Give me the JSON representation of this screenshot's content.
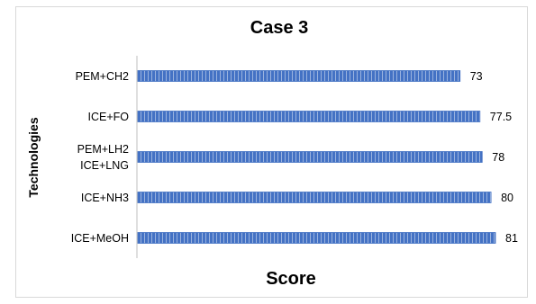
{
  "chart_data": {
    "type": "bar",
    "orientation": "horizontal",
    "title": "Case 3",
    "xlabel": "Score",
    "ylabel": "Technologies",
    "categories": [
      [
        "PEM+CH2"
      ],
      [
        "ICE+FO"
      ],
      [
        "PEM+LH2",
        "ICE+LNG"
      ],
      [
        "ICE+NH3"
      ],
      [
        "ICE+MeOH"
      ]
    ],
    "values": [
      73,
      77.5,
      78,
      80,
      81
    ],
    "data_labels": [
      "73",
      "77.5",
      "78",
      "80",
      "81"
    ],
    "xlim": [
      0,
      81
    ],
    "bar_color": "#4472c4",
    "grid": false,
    "legend": "none"
  }
}
